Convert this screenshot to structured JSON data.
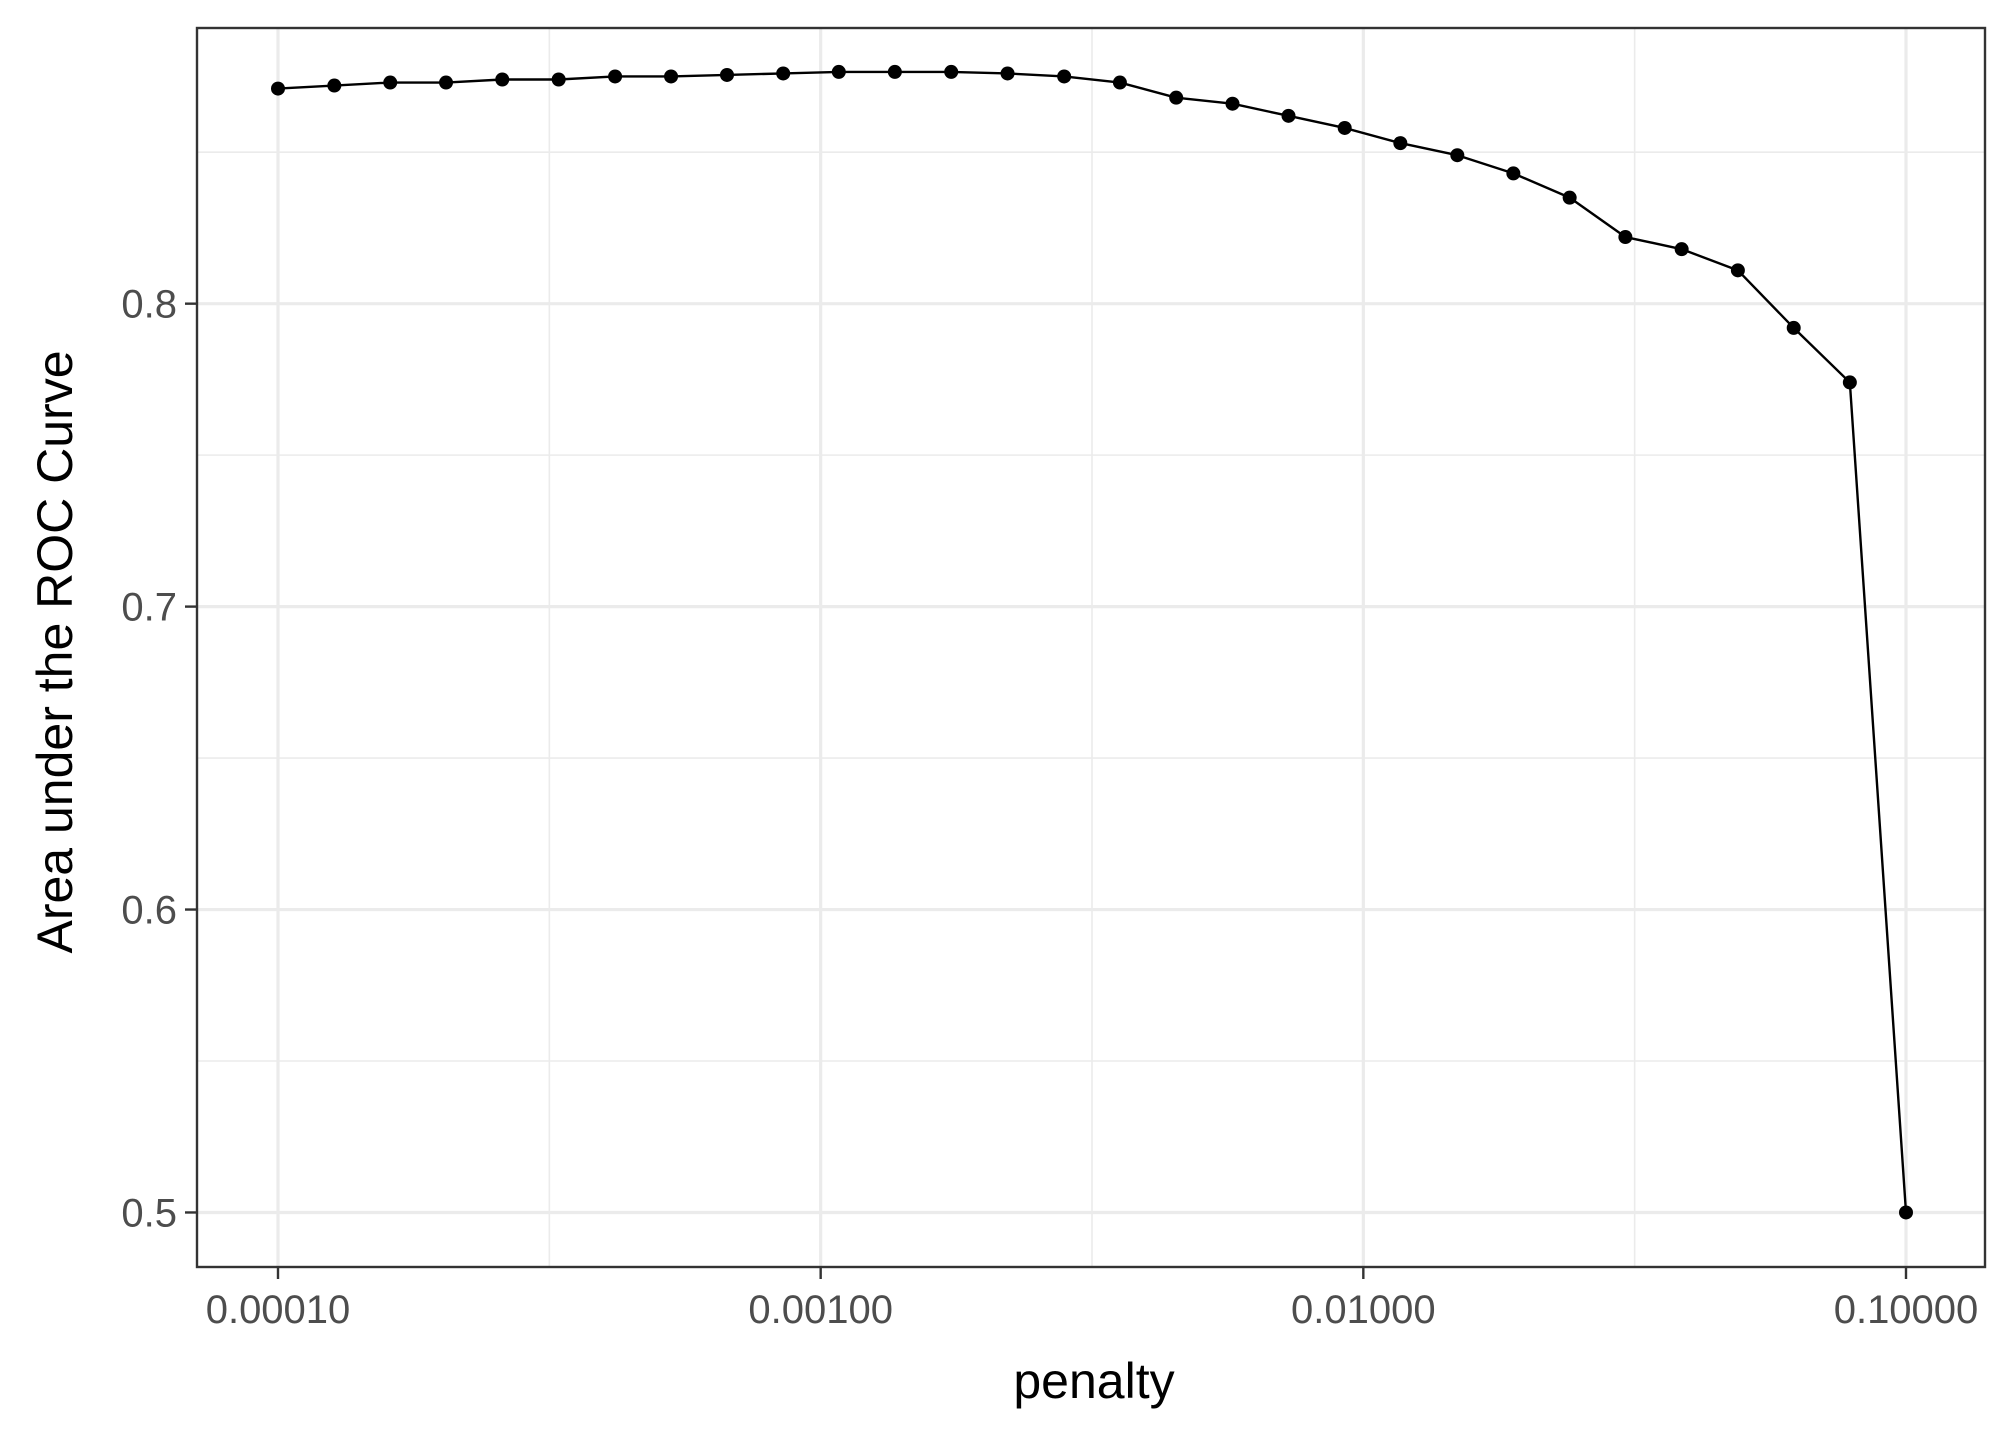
{
  "chart_data": {
    "type": "line",
    "xlabel": "penalty",
    "ylabel": "Area under the ROC Curve",
    "x_scale": "log10",
    "xlim": [
      0.0001,
      0.1
    ],
    "ylim": [
      0.482,
      0.891
    ],
    "x_ticks": [
      0.0001,
      0.001,
      0.01,
      0.1
    ],
    "x_tick_labels": [
      "0.00010",
      "0.00100",
      "0.01000",
      "0.10000"
    ],
    "y_ticks": [
      0.5,
      0.6,
      0.7,
      0.8
    ],
    "y_tick_labels": [
      "0.5",
      "0.6",
      "0.7",
      "0.8"
    ],
    "grid": true,
    "legend": "none",
    "series": [
      {
        "x": [
          0.0001,
          0.000127,
          0.000161,
          0.000204,
          0.000259,
          0.000329,
          0.000418,
          0.00053,
          0.000672,
          0.000853,
          0.00108,
          0.00137,
          0.00174,
          0.00221,
          0.00281,
          0.00356,
          0.00452,
          0.00574,
          0.00728,
          0.00924,
          0.0117,
          0.0149,
          0.0189,
          0.024,
          0.0304,
          0.0386,
          0.049,
          0.0621,
          0.0788,
          0.1
        ],
        "y": [
          0.871,
          0.872,
          0.873,
          0.873,
          0.874,
          0.874,
          0.875,
          0.875,
          0.8755,
          0.876,
          0.8765,
          0.8765,
          0.8765,
          0.876,
          0.875,
          0.873,
          0.868,
          0.866,
          0.862,
          0.858,
          0.853,
          0.849,
          0.843,
          0.835,
          0.822,
          0.818,
          0.811,
          0.792,
          0.774,
          0.5
        ]
      }
    ]
  }
}
